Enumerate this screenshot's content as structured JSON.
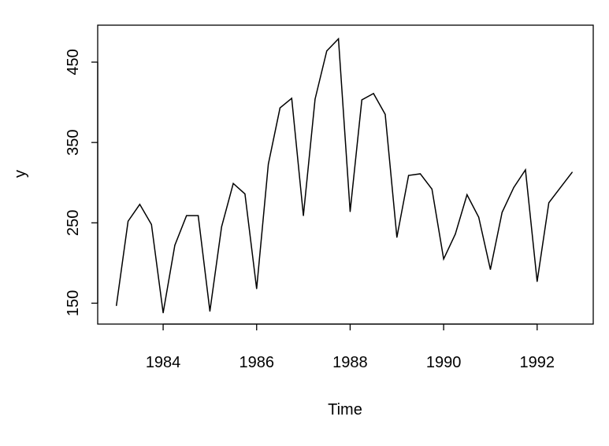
{
  "chart_data": {
    "type": "line",
    "title": "",
    "xlabel": "Time",
    "ylabel": "y",
    "xlim": [
      1982.6,
      1993.2
    ],
    "ylim": [
      124,
      496
    ],
    "x_ticks": [
      1984,
      1986,
      1988,
      1990,
      1992
    ],
    "y_ticks": [
      150,
      250,
      350,
      450
    ],
    "x_tick_labels": [
      "1984",
      "1986",
      "1988",
      "1990",
      "1992"
    ],
    "y_tick_labels": [
      "150",
      "250",
      "350",
      "450"
    ],
    "grid": false,
    "line_color": "#000000",
    "series": [
      {
        "x": [
          1983.0,
          1983.25,
          1983.5,
          1983.75,
          1984.0,
          1984.25,
          1984.5,
          1984.75,
          1985.0,
          1985.25,
          1985.5,
          1985.75,
          1986.0,
          1986.25,
          1986.5,
          1986.75,
          1987.0,
          1987.25,
          1987.5,
          1987.75,
          1988.0,
          1988.25,
          1988.5,
          1988.75,
          1989.0,
          1989.25,
          1989.5,
          1989.75,
          1990.0,
          1990.25,
          1990.5,
          1990.75,
          1991.0,
          1991.25,
          1991.5,
          1991.75,
          1992.0,
          1992.25,
          1992.5,
          1992.75
        ],
        "values": [
          147,
          252,
          273,
          248,
          138,
          222,
          259,
          259,
          140,
          245,
          299,
          286,
          168,
          323,
          393,
          405,
          259,
          404,
          464,
          479,
          264,
          403,
          411,
          385,
          232,
          309,
          311,
          292,
          205,
          236,
          285,
          257,
          192,
          263,
          294,
          316,
          177,
          275,
          294,
          313
        ]
      }
    ]
  }
}
